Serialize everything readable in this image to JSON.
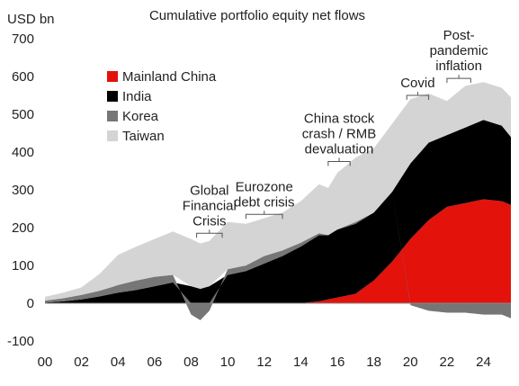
{
  "chart_data": {
    "type": "area",
    "title": "Cumulative portfolio equity net flows",
    "ylabel": "USD bn",
    "xlabel": "",
    "ylim": [
      -100,
      700
    ],
    "xlim": [
      2000,
      2025.5
    ],
    "y_ticks": [
      -100,
      0,
      100,
      200,
      300,
      400,
      500,
      600,
      700
    ],
    "x_ticks": [
      2000,
      2002,
      2004,
      2006,
      2008,
      2010,
      2012,
      2014,
      2016,
      2018,
      2020,
      2022,
      2024
    ],
    "x_tick_labels": [
      "00",
      "02",
      "04",
      "06",
      "08",
      "10",
      "12",
      "14",
      "16",
      "18",
      "20",
      "22",
      "24"
    ],
    "stacked": true,
    "grid": false,
    "legend_position": "top-left",
    "x": [
      2000,
      2001,
      2002,
      2003,
      2004,
      2005,
      2006,
      2007,
      2008,
      2008.5,
      2009,
      2010,
      2011,
      2012,
      2013,
      2014,
      2015,
      2015.5,
      2016,
      2017,
      2018,
      2019,
      2020,
      2021,
      2022,
      2023,
      2024,
      2025,
      2025.5
    ],
    "series": [
      {
        "name": "Mainland China",
        "color": "#e3120b",
        "values": [
          0,
          0,
          0,
          0,
          0,
          0,
          0,
          0,
          0,
          0,
          0,
          0,
          0,
          0,
          0,
          0,
          5,
          10,
          15,
          25,
          60,
          110,
          170,
          220,
          255,
          265,
          275,
          270,
          260
        ]
      },
      {
        "name": "India",
        "color": "#000000",
        "values": [
          2,
          5,
          10,
          18,
          28,
          35,
          45,
          55,
          45,
          38,
          45,
          75,
          85,
          105,
          125,
          150,
          175,
          170,
          180,
          185,
          180,
          185,
          200,
          205,
          190,
          200,
          210,
          200,
          180
        ]
      },
      {
        "name": "Korea",
        "color": "#767676",
        "values": [
          5,
          8,
          12,
          15,
          20,
          25,
          25,
          20,
          -30,
          -45,
          -20,
          15,
          15,
          20,
          15,
          10,
          5,
          0,
          0,
          5,
          0,
          0,
          -5,
          -20,
          -25,
          -25,
          -30,
          -30,
          -40
        ]
      },
      {
        "name": "Taiwan",
        "color": "#d4d4d4",
        "values": [
          10,
          15,
          20,
          45,
          80,
          90,
          100,
          115,
          125,
          120,
          120,
          125,
          110,
          100,
          100,
          110,
          130,
          125,
          150,
          170,
          170,
          180,
          170,
          130,
          90,
          110,
          100,
          100,
          105
        ]
      }
    ],
    "annotations": [
      {
        "text": "Global Financial Crisis",
        "lines": [
          "Global",
          "Financial",
          "Crisis"
        ],
        "x_range": [
          2008.3,
          2009.7
        ],
        "y_anchor": 185
      },
      {
        "text": "Eurozone debt crisis",
        "lines": [
          "Eurozone",
          "debt crisis"
        ],
        "x_range": [
          2011,
          2013
        ],
        "y_anchor": 235
      },
      {
        "text": "China stock crash / RMB devaluation",
        "lines": [
          "China stock",
          "crash / RMB",
          "devaluation"
        ],
        "x_range": [
          2015.5,
          2016.7
        ],
        "y_anchor": 375
      },
      {
        "text": "Covid",
        "lines": [
          "Covid"
        ],
        "x_range": [
          2019.8,
          2021
        ],
        "y_anchor": 550
      },
      {
        "text": "Post-pandemic inflation",
        "lines": [
          "Post-",
          "pandemic",
          "inflation"
        ],
        "x_range": [
          2022,
          2023.3
        ],
        "y_anchor": 595
      }
    ]
  }
}
